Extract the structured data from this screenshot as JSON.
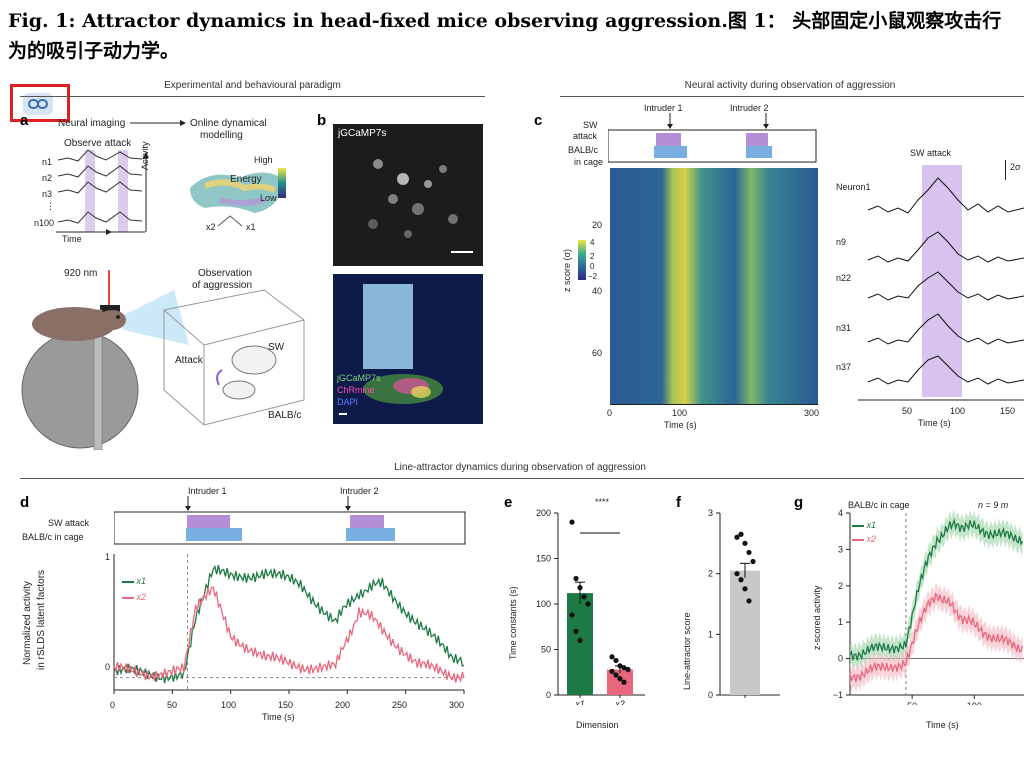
{
  "figure": {
    "title": "Fig. 1: Attractor dynamics in head-fixed mice observing aggression.图 1： 头部固定小鼠观察攻击行为的吸引子动力学。"
  },
  "link_badge": {
    "icon": "link-icon",
    "color": "#e02020"
  },
  "sections": {
    "top_left": "Experimental and behavioural paradigm",
    "top_right": "Neural activity during observation of aggression",
    "bottom": "Line-attractor dynamics during observation of aggression"
  },
  "panel_a": {
    "label": "a",
    "neural_imaging": "Neural imaging",
    "online_modelling_1": "Online dynamical",
    "online_modelling_2": "modelling",
    "observe_attack": "Observe attack",
    "neurons": [
      "n1",
      "n2",
      "n3",
      "⋮",
      "n100"
    ],
    "time": "Time",
    "activity": "Activity",
    "energy": "Energy",
    "high": "High",
    "low": "Low",
    "x2": "x2",
    "x1": "x1",
    "laser": "920 nm",
    "observation_1": "Observation",
    "observation_2": "of aggression",
    "attack": "Attack",
    "sw": "SW",
    "balbc": "BALB/c"
  },
  "panel_b": {
    "label": "b",
    "top_label": "jGCaMP7s",
    "legend": [
      "jGCaMP7s",
      "ChRmine",
      "DAPI"
    ],
    "legend_colors": [
      "#7dd37d",
      "#ff4fb0",
      "#5b7bff"
    ]
  },
  "panel_c": {
    "label": "c",
    "intruder1": "Intruder 1",
    "intruder2": "Intruder 2",
    "row_sw_1": "SW",
    "row_sw_2": "attack",
    "row_balb_1": "BALB/c",
    "row_balb_2": "in cage",
    "y_ticks": [
      "20",
      "40",
      "60"
    ],
    "x_ticks": [
      "0",
      "100",
      "300"
    ],
    "xlabel": "Time (s)",
    "cbar_label": "z score (σ)",
    "cbar_ticks": [
      "4",
      "2",
      "0",
      "−2"
    ],
    "trace_title": "SW attack",
    "scale": "2σ",
    "trace_labels": [
      "Neuron1",
      "n9",
      "n22",
      "n31",
      "n37"
    ],
    "trace_x_ticks": [
      "50",
      "100",
      "150"
    ],
    "trace_xlabel": "Time (s)"
  },
  "panel_d": {
    "label": "d",
    "intruder1": "Intruder 1",
    "intruder2": "Intruder 2",
    "row_sw": "SW attack",
    "row_balb": "BALB/c in cage",
    "ylabel_1": "Normalized activity",
    "ylabel_2": "in rSLDS latent factors",
    "x_ticks": [
      "0",
      "50",
      "100",
      "150",
      "200",
      "250",
      "300"
    ],
    "y_ticks": [
      "0",
      "1"
    ],
    "xlabel": "Time (s)",
    "legend": [
      "x1",
      "x2"
    ],
    "colors": {
      "x1": "#1e7a45",
      "x2": "#e8677e",
      "sw": "#b48fd6",
      "balb": "#79aee0"
    }
  },
  "panel_e": {
    "label": "e",
    "ylabel": "Time constants (s)",
    "y_ticks": [
      "0",
      "50",
      "100",
      "150",
      "200"
    ],
    "sig": "****",
    "xlabel": "Dimension",
    "categories": [
      "x1",
      "x2"
    ]
  },
  "panel_f": {
    "label": "f",
    "ylabel": "Line-attractor score",
    "y_ticks": [
      "0",
      "1",
      "2",
      "3"
    ]
  },
  "panel_g": {
    "label": "g",
    "title": "BALB/c in cage",
    "n_label": "n = 9 m",
    "ylabel": "z-scored activity",
    "y_ticks": [
      "−1",
      "0",
      "1",
      "2",
      "3",
      "4"
    ],
    "x_ticks": [
      "50",
      "100"
    ],
    "xlabel": "Time (s)",
    "legend": [
      "x1",
      "x2"
    ]
  },
  "chart_data": [
    {
      "type": "bar",
      "panel": "e",
      "categories": [
        "x1",
        "x2"
      ],
      "values": [
        112,
        28
      ],
      "errors": [
        12,
        4
      ],
      "points": [
        [
          190,
          128,
          118,
          108,
          100,
          88,
          70,
          60
        ],
        [
          42,
          38,
          32,
          30,
          28,
          26,
          22,
          18,
          14
        ]
      ],
      "ylabel": "Time constants (s)",
      "xlabel": "Dimension",
      "ylim": [
        0,
        200
      ],
      "colors": [
        "#1e7a45",
        "#e8677e"
      ]
    },
    {
      "type": "bar",
      "panel": "f",
      "categories": [
        ""
      ],
      "values": [
        2.05
      ],
      "errors": [
        0.12
      ],
      "points": [
        [
          2.6,
          2.65,
          2.5,
          2.35,
          2.2,
          2.0,
          1.9,
          1.75,
          1.55
        ]
      ],
      "ylabel": "Line-attractor score",
      "ylim": [
        0,
        3
      ],
      "colors": [
        "#c8c8c8"
      ]
    },
    {
      "type": "line",
      "panel": "d",
      "xlabel": "Time (s)",
      "ylabel": "Normalized activity in rSLDS latent factors",
      "xlim": [
        0,
        300
      ],
      "ylim": [
        -0.1,
        1
      ],
      "series": [
        {
          "name": "x1",
          "x": [
            0,
            30,
            60,
            70,
            85,
            100,
            130,
            160,
            190,
            210,
            230,
            260,
            290,
            300
          ],
          "y": [
            0.05,
            0.03,
            0.02,
            0.5,
            0.85,
            0.82,
            0.85,
            0.75,
            0.45,
            0.7,
            0.75,
            0.45,
            0.15,
            0.1
          ]
        },
        {
          "name": "x2",
          "x": [
            0,
            30,
            60,
            70,
            85,
            100,
            130,
            160,
            190,
            210,
            230,
            260,
            290,
            300
          ],
          "y": [
            0.06,
            0.04,
            0.05,
            0.55,
            0.7,
            0.35,
            0.15,
            0.1,
            0.08,
            0.55,
            0.4,
            0.1,
            0.02,
            0.0
          ]
        }
      ],
      "shaded": {
        "sw_attack": [
          [
            63,
            100
          ],
          [
            203,
            232
          ]
        ],
        "balb_in_cage": [
          [
            63,
            108
          ],
          [
            200,
            240
          ]
        ]
      }
    },
    {
      "type": "line",
      "panel": "g",
      "xlabel": "Time (s)",
      "ylabel": "z-scored activity",
      "xlim": [
        0,
        140
      ],
      "ylim": [
        -1,
        4
      ],
      "series": [
        {
          "name": "x1",
          "x": [
            0,
            20,
            45,
            55,
            70,
            85,
            100,
            120,
            140
          ],
          "y": [
            0.1,
            0.25,
            0.4,
            2.0,
            3.3,
            3.7,
            3.6,
            3.4,
            3.3
          ]
        },
        {
          "name": "x2",
          "x": [
            0,
            20,
            45,
            55,
            70,
            85,
            100,
            120,
            140
          ],
          "y": [
            -0.5,
            -0.3,
            -0.1,
            1.0,
            1.8,
            1.3,
            0.9,
            0.5,
            0.3
          ]
        }
      ],
      "vline": 45
    }
  ]
}
